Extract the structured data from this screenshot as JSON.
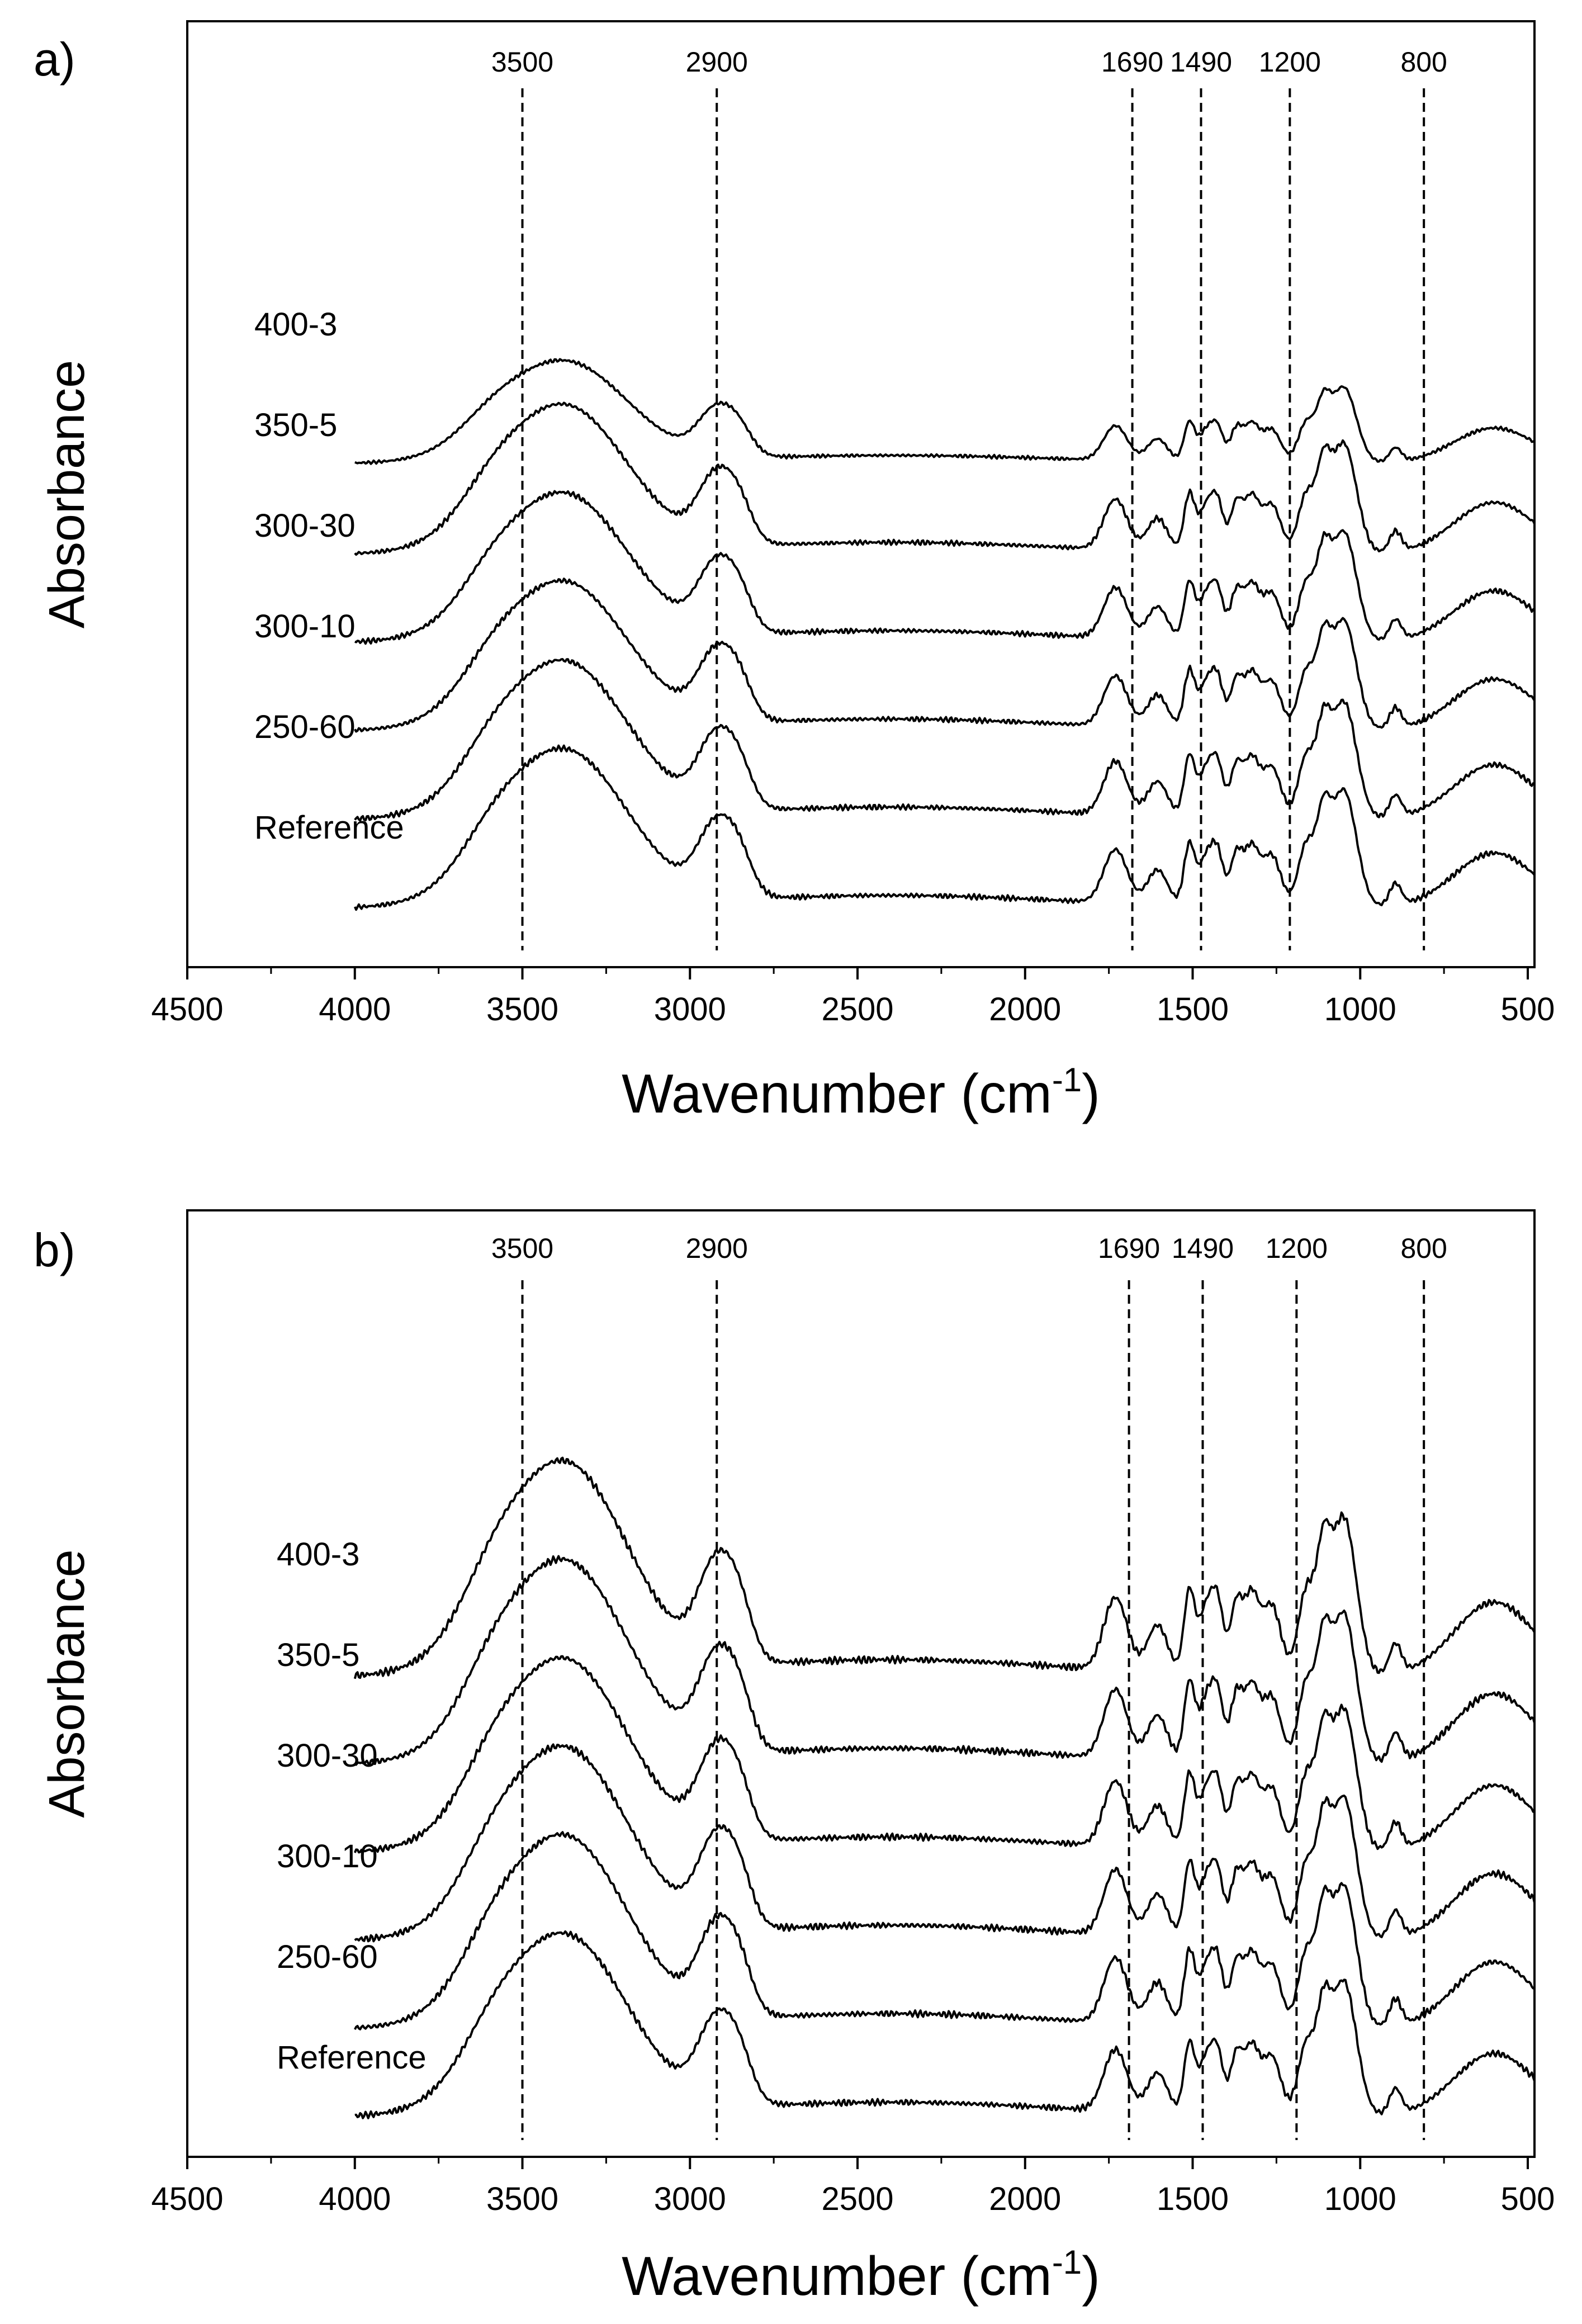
{
  "chart_data": [
    {
      "type": "line",
      "panel_label": "a)",
      "xlabel": "Wavenumber (cm",
      "xlabel_sup": "-1",
      "xlabel_close": ")",
      "ylabel": "Absorbance",
      "xlim": [
        4500,
        480
      ],
      "x_ticks": [
        "4500",
        "4000",
        "3500",
        "3000",
        "2500",
        "2000",
        "1500",
        "1000",
        "500"
      ],
      "x_tick_values": [
        4500,
        4000,
        3500,
        3000,
        2500,
        2000,
        1500,
        1000,
        500
      ],
      "x_range": [
        4000,
        480
      ],
      "grid": false,
      "legend": "none",
      "peak_markers": [
        {
          "label": "3500",
          "x": 3500
        },
        {
          "label": "2900",
          "x": 2920
        },
        {
          "label": "1690",
          "x": 1680
        },
        {
          "label": "1490",
          "x": 1475
        },
        {
          "label": "1200",
          "x": 1210
        },
        {
          "label": "800",
          "x": 810
        }
      ],
      "series": [
        {
          "name": "400-3",
          "offset": 5.0,
          "scale": 0.55
        },
        {
          "name": "350-5",
          "offset": 4.0,
          "scale": 0.8
        },
        {
          "name": "300-30",
          "offset": 3.0,
          "scale": 0.8
        },
        {
          "name": "300-10",
          "offset": 2.0,
          "scale": 0.8
        },
        {
          "name": "250-60",
          "offset": 1.0,
          "scale": 0.85
        },
        {
          "name": "Reference",
          "offset": 0.0,
          "scale": 0.85
        }
      ]
    },
    {
      "type": "line",
      "panel_label": "b)",
      "xlabel": "Wavenumber (cm",
      "xlabel_sup": "-1",
      "xlabel_close": ")",
      "ylabel": "Absorbance",
      "xlim": [
        4500,
        480
      ],
      "x_ticks": [
        "4500",
        "4000",
        "3500",
        "3000",
        "2500",
        "2000",
        "1500",
        "1000",
        "500"
      ],
      "x_tick_values": [
        4500,
        4000,
        3500,
        3000,
        2500,
        2000,
        1500,
        1000,
        500
      ],
      "x_range": [
        4000,
        480
      ],
      "grid": false,
      "legend": "none",
      "peak_markers": [
        {
          "label": "3500",
          "x": 3500
        },
        {
          "label": "2900",
          "x": 2920
        },
        {
          "label": "1690",
          "x": 1690
        },
        {
          "label": "1490",
          "x": 1470
        },
        {
          "label": "1200",
          "x": 1190
        },
        {
          "label": "800",
          "x": 810
        }
      ],
      "series": [
        {
          "name": "400-3",
          "offset": 5.0,
          "scale": 1.0
        },
        {
          "name": "350-5",
          "offset": 4.0,
          "scale": 0.95
        },
        {
          "name": "300-30",
          "offset": 3.0,
          "scale": 0.9
        },
        {
          "name": "300-10",
          "offset": 2.0,
          "scale": 0.9
        },
        {
          "name": "250-60",
          "offset": 1.0,
          "scale": 0.9
        },
        {
          "name": "Reference",
          "offset": 0.0,
          "scale": 0.85
        }
      ]
    }
  ]
}
